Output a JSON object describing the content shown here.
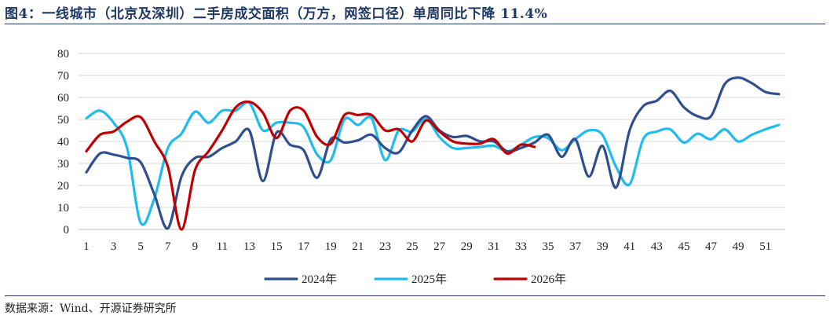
{
  "title": "图4：一线城市（北京及深圳）二手房成交面积（万方，网签口径）单周同比下降 11.4%",
  "source": "数据来源：Wind、开源证券研究所",
  "chart_data": {
    "type": "line",
    "x_tick_labels": [
      "1",
      "3",
      "5",
      "7",
      "9",
      "11",
      "13",
      "15",
      "17",
      "19",
      "21",
      "23",
      "25",
      "27",
      "29",
      "31",
      "33",
      "35",
      "37",
      "39",
      "41",
      "43",
      "45",
      "47",
      "49",
      "51"
    ],
    "y_tick_labels": [
      "0",
      "10",
      "20",
      "30",
      "40",
      "50",
      "60",
      "70",
      "80"
    ],
    "ylim": [
      0,
      80
    ],
    "xlim": [
      1,
      52
    ],
    "grid": true,
    "legend_position": "bottom",
    "series": [
      {
        "name": "2024年",
        "color": "#2f4f8f",
        "x": [
          1,
          2,
          3,
          4,
          5,
          6,
          7,
          8,
          9,
          10,
          11,
          12,
          13,
          14,
          15,
          16,
          17,
          18,
          19,
          20,
          21,
          22,
          23,
          24,
          25,
          26,
          27,
          28,
          29,
          30,
          31,
          32,
          33,
          34,
          35,
          36,
          37,
          38,
          39,
          40,
          41,
          42,
          43,
          44,
          45,
          46,
          47,
          48,
          49,
          50,
          51,
          52
        ],
        "values": [
          26,
          34.5,
          34,
          32.5,
          30.5,
          16,
          0.5,
          24,
          32.5,
          33,
          37,
          40,
          45,
          22,
          44,
          38.5,
          36,
          23.5,
          41,
          39.5,
          40.5,
          43,
          37,
          35,
          45,
          51.5,
          45,
          42,
          42.5,
          40,
          40,
          35.5,
          37,
          39.5,
          43,
          33,
          41,
          24,
          38,
          19,
          45,
          56,
          58.5,
          63,
          55.5,
          51.5,
          51.5,
          66,
          69,
          66.5,
          62.5,
          61.5
        ]
      },
      {
        "name": "2025年",
        "color": "#21bcef",
        "x": [
          1,
          2,
          3,
          4,
          5,
          6,
          7,
          8,
          9,
          10,
          11,
          12,
          13,
          14,
          15,
          16,
          17,
          18,
          19,
          20,
          21,
          22,
          23,
          24,
          25,
          26,
          27,
          28,
          29,
          30,
          31,
          32,
          33,
          34,
          35,
          36,
          37,
          38,
          39,
          40,
          41,
          42,
          43,
          44,
          45,
          46,
          47,
          48,
          49,
          50,
          51,
          52
        ],
        "values": [
          50.5,
          54,
          48.5,
          37,
          3,
          14,
          37,
          43.5,
          53.5,
          48.5,
          54,
          54,
          57.5,
          45,
          48.5,
          48.5,
          46.5,
          34,
          31.5,
          50,
          47.5,
          50.5,
          31.5,
          45,
          44.5,
          50.5,
          42,
          37,
          37,
          37.5,
          38,
          35.5,
          38.5,
          42,
          41.5,
          36,
          41,
          45,
          43,
          28.5,
          20.5,
          41,
          44.5,
          45.5,
          39.5,
          43.5,
          41,
          45.5,
          40,
          43,
          45.5,
          47.5
        ]
      },
      {
        "name": "2026年",
        "color": "#c00000",
        "x": [
          1,
          2,
          3,
          4,
          5,
          6,
          7,
          8,
          9,
          10,
          11,
          12,
          13,
          14,
          15,
          16,
          17,
          18,
          19,
          20,
          21,
          22,
          23,
          24,
          25,
          26,
          27,
          28,
          29,
          30,
          31,
          32,
          33,
          34
        ],
        "values": [
          35.5,
          43,
          44.5,
          49,
          51,
          40,
          28.5,
          0,
          27,
          35.5,
          45,
          55.5,
          58,
          53,
          41.5,
          54,
          54,
          42,
          39,
          52,
          52,
          52,
          45,
          45.5,
          40,
          49.5,
          44.5,
          40,
          39,
          39,
          41,
          34.5,
          38.5,
          37.5
        ]
      }
    ]
  }
}
